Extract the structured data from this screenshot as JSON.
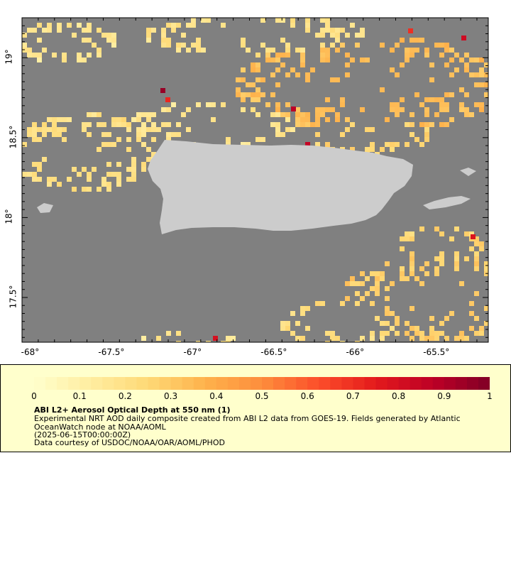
{
  "map": {
    "lat_range": [
      17.22,
      19.25
    ],
    "lon_range": [
      -68.05,
      -65.18
    ],
    "lat_ticks": [
      "17.5°",
      "18°",
      "18.5°",
      "19°"
    ],
    "lat_tick_values": [
      17.5,
      18.0,
      18.5,
      19.0
    ],
    "lon_ticks": [
      "-68°",
      "-67.5°",
      "-67°",
      "-66.5°",
      "-66°",
      "-65.5°"
    ],
    "lon_tick_values": [
      -68.0,
      -67.5,
      -67.0,
      -66.5,
      -66.0,
      -65.5
    ],
    "colors": {
      "no_data": "#808080",
      "land": "#cccccc",
      "legend_background": "#ffffcc"
    }
  },
  "colorbar": {
    "labels": [
      "0",
      "0.1",
      "0.2",
      "0.3",
      "0.4",
      "0.5",
      "0.6",
      "0.7",
      "0.8",
      "0.9",
      "1"
    ],
    "range": [
      0,
      1
    ],
    "palette": [
      "#ffffcc",
      "#ffeda0",
      "#fed976",
      "#feb24c",
      "#fd8d3c",
      "#fc4e2a",
      "#e31a1c",
      "#bd0026",
      "#800026"
    ]
  },
  "legend": {
    "title": "ABI L2+ Aerosol Optical Depth at 550 nm (1)",
    "description": "Experimental NRT AOD daily composite created from ABI L2 data from GOES-19. Fields generated by Atlantic OceanWatch node at NOAA/AOML",
    "time": "(2025-06-15T00:00:00Z)",
    "credit": "Data courtesy of USDOC/NOAA/OAR/AOML/PHOD"
  }
}
